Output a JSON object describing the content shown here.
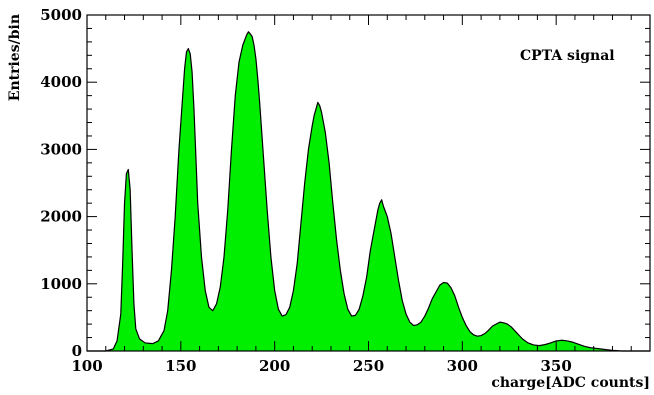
{
  "chart_data": {
    "type": "area",
    "title": "",
    "annotation": "CPTA  signal",
    "xlabel": "charge[ADC counts]",
    "ylabel": "Entries/bin",
    "xlim": [
      100,
      400
    ],
    "ylim": [
      0,
      5000
    ],
    "x_ticks": [
      100,
      150,
      200,
      250,
      300,
      350
    ],
    "y_ticks": [
      0,
      1000,
      2000,
      3000,
      4000,
      5000
    ],
    "grid": false,
    "fill_color": "#00ee00",
    "line_color": "#000000",
    "series": [
      {
        "x": [
          100,
          110,
          114,
          116,
          118,
          119,
          120,
          121,
          122,
          123,
          124,
          125,
          126,
          128,
          131,
          135,
          138,
          141,
          143,
          145,
          147,
          149,
          151,
          152,
          153,
          154,
          155,
          156,
          157,
          158,
          159,
          161,
          163,
          165,
          167,
          169,
          171,
          173,
          175,
          177,
          179,
          181,
          183,
          185,
          186,
          187,
          188,
          189,
          190,
          191,
          192,
          194,
          196,
          198,
          200,
          202,
          204,
          206,
          208,
          210,
          212,
          214,
          216,
          218,
          220,
          221,
          222,
          223,
          224,
          225,
          227,
          229,
          231,
          233,
          235,
          237,
          239,
          241,
          243,
          245,
          247,
          249,
          251,
          253,
          255,
          256,
          257,
          258,
          260,
          262,
          264,
          266,
          268,
          270,
          272,
          274,
          276,
          278,
          280,
          282,
          284,
          286,
          288,
          290,
          292,
          294,
          296,
          298,
          300,
          302,
          304,
          306,
          308,
          310,
          312,
          314,
          316,
          318,
          320,
          322,
          324,
          326,
          328,
          330,
          332,
          335,
          338,
          341,
          344,
          347,
          350,
          353,
          356,
          359,
          362,
          365,
          368,
          371,
          374,
          377,
          380,
          385,
          390,
          400
        ],
        "values": [
          0,
          0,
          30,
          150,
          550,
          1300,
          2200,
          2640,
          2700,
          2400,
          1500,
          700,
          330,
          180,
          120,
          110,
          150,
          300,
          600,
          1200,
          2000,
          3000,
          3800,
          4200,
          4450,
          4500,
          4420,
          4150,
          3600,
          2900,
          2200,
          1400,
          900,
          650,
          600,
          700,
          950,
          1400,
          2100,
          3000,
          3800,
          4300,
          4550,
          4700,
          4750,
          4720,
          4680,
          4550,
          4350,
          4050,
          3700,
          2900,
          2100,
          1400,
          900,
          620,
          520,
          540,
          650,
          900,
          1300,
          1900,
          2500,
          3000,
          3350,
          3500,
          3600,
          3700,
          3650,
          3550,
          3250,
          2800,
          2200,
          1650,
          1200,
          850,
          620,
          520,
          530,
          620,
          820,
          1100,
          1500,
          1800,
          2100,
          2200,
          2250,
          2150,
          2000,
          1750,
          1400,
          1050,
          750,
          550,
          430,
          380,
          390,
          430,
          520,
          640,
          780,
          880,
          980,
          1020,
          1010,
          940,
          820,
          650,
          500,
          380,
          290,
          240,
          220,
          230,
          260,
          310,
          370,
          400,
          430,
          420,
          400,
          360,
          300,
          240,
          180,
          120,
          90,
          80,
          95,
          120,
          150,
          160,
          150,
          130,
          100,
          70,
          50,
          40,
          30,
          20,
          10,
          0,
          0,
          0
        ]
      }
    ]
  }
}
